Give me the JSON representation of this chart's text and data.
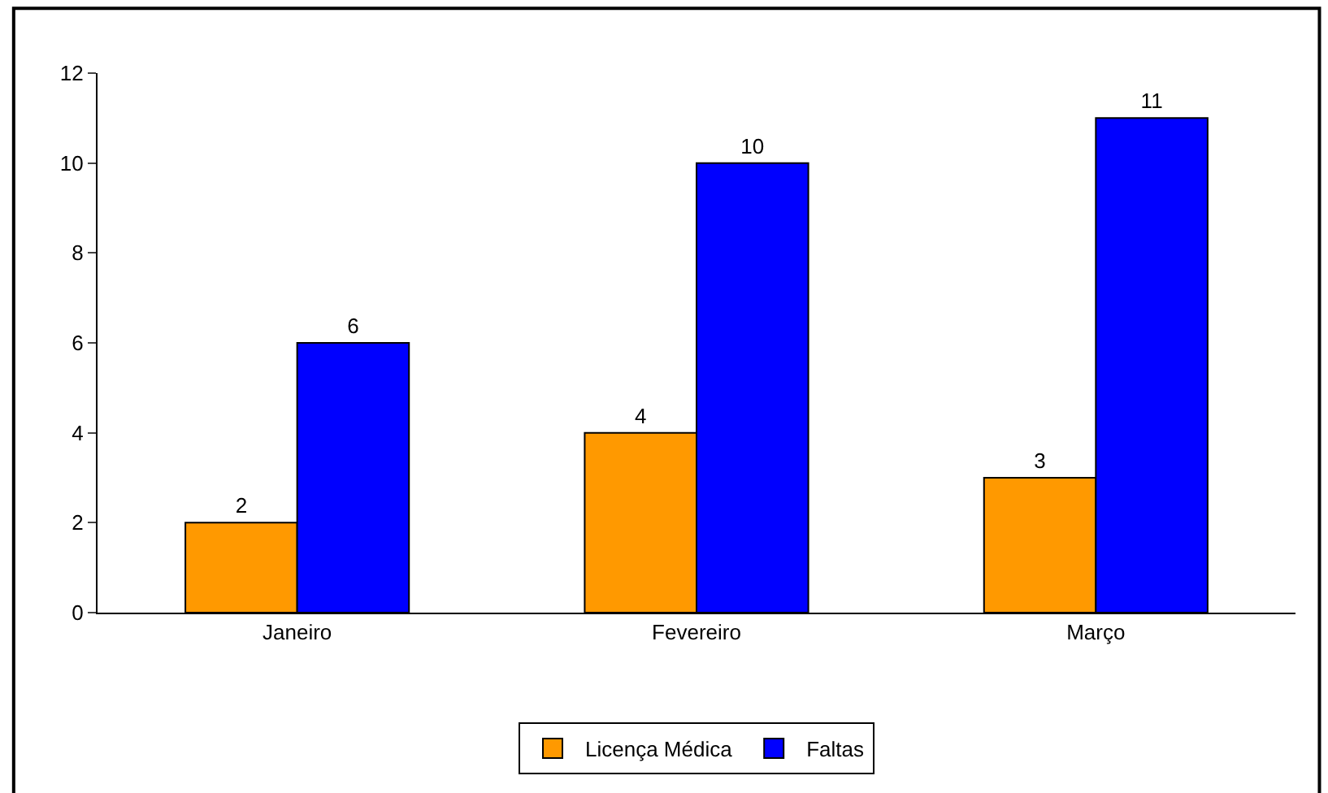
{
  "chart_data": {
    "type": "bar",
    "categories": [
      "Janeiro",
      "Fevereiro",
      "Março"
    ],
    "series": [
      {
        "name": "Licença Médica",
        "color": "#ff9900",
        "values": [
          2,
          4,
          3
        ]
      },
      {
        "name": "Faltas",
        "color": "#0000ff",
        "values": [
          6,
          10,
          11
        ]
      }
    ],
    "ylim": [
      0,
      12
    ],
    "yticks": [
      0,
      2,
      4,
      6,
      8,
      10,
      12
    ],
    "data_labels": true,
    "grid": false,
    "legend": "bottom"
  }
}
